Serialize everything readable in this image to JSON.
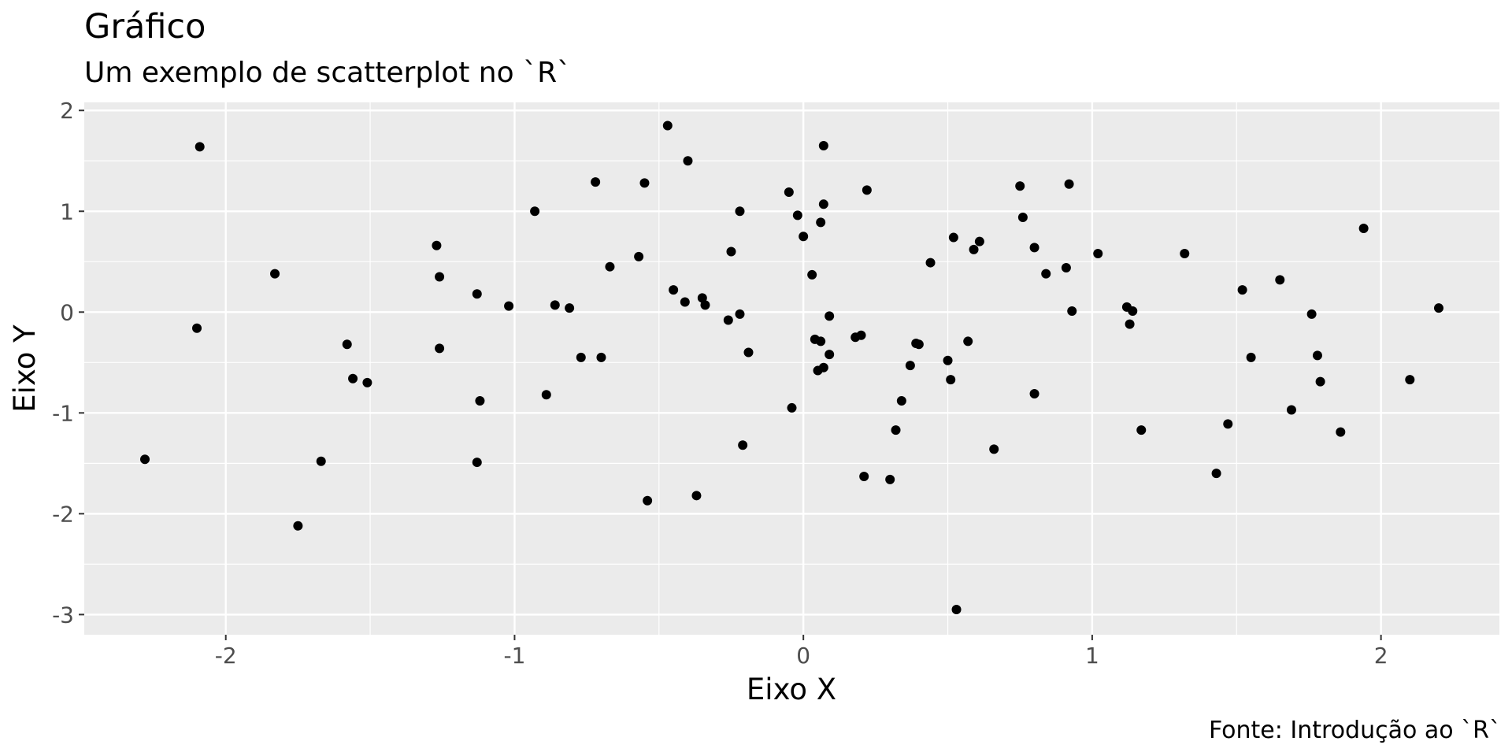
{
  "chart_data": {
    "type": "scatter",
    "title": "Gráfico",
    "subtitle": "Um exemplo de scatterplot no `R`",
    "xlabel": "Eixo X",
    "ylabel": "Eixo Y",
    "caption": "Fonte: Introdução ao `R`",
    "xlim": [
      -2.49,
      2.41
    ],
    "ylim": [
      -3.2,
      2.08
    ],
    "xticks": [
      -2,
      -1,
      0,
      1,
      2
    ],
    "yticks": [
      -3,
      -2,
      -1,
      0,
      1,
      2
    ],
    "xtick_labels": [
      "-2",
      "-1",
      "0",
      "1",
      "2"
    ],
    "ytick_labels": [
      "-3",
      "-2",
      "-1",
      "0",
      "1",
      "2"
    ],
    "grid": true,
    "legend": "none",
    "panel_background": "#ebebeb",
    "grid_color": "#ffffff",
    "point_color": "#000000",
    "points": [
      {
        "x": -2.28,
        "y": -1.46
      },
      {
        "x": -2.09,
        "y": 1.64
      },
      {
        "x": -2.1,
        "y": -0.16
      },
      {
        "x": -1.83,
        "y": 0.38
      },
      {
        "x": -1.75,
        "y": -2.12
      },
      {
        "x": -1.67,
        "y": -1.48
      },
      {
        "x": -1.58,
        "y": -0.32
      },
      {
        "x": -1.56,
        "y": -0.66
      },
      {
        "x": -1.51,
        "y": -0.7
      },
      {
        "x": -1.27,
        "y": 0.66
      },
      {
        "x": -1.26,
        "y": 0.35
      },
      {
        "x": -1.26,
        "y": -0.36
      },
      {
        "x": -1.13,
        "y": 0.18
      },
      {
        "x": -1.12,
        "y": -0.88
      },
      {
        "x": -1.13,
        "y": -1.49
      },
      {
        "x": -1.02,
        "y": 0.06
      },
      {
        "x": -0.93,
        "y": 1.0
      },
      {
        "x": -0.89,
        "y": -0.82
      },
      {
        "x": -0.86,
        "y": 0.07
      },
      {
        "x": -0.81,
        "y": 0.04
      },
      {
        "x": -0.77,
        "y": -0.45
      },
      {
        "x": -0.72,
        "y": 1.29
      },
      {
        "x": -0.7,
        "y": -0.45
      },
      {
        "x": -0.67,
        "y": 0.45
      },
      {
        "x": -0.57,
        "y": 0.55
      },
      {
        "x": -0.55,
        "y": 1.28
      },
      {
        "x": -0.54,
        "y": -1.87
      },
      {
        "x": -0.47,
        "y": 1.85
      },
      {
        "x": -0.45,
        "y": 0.22
      },
      {
        "x": -0.41,
        "y": 0.1
      },
      {
        "x": -0.4,
        "y": 1.5
      },
      {
        "x": -0.37,
        "y": -1.82
      },
      {
        "x": -0.35,
        "y": 0.14
      },
      {
        "x": -0.34,
        "y": 0.07
      },
      {
        "x": -0.26,
        "y": -0.08
      },
      {
        "x": -0.25,
        "y": 0.6
      },
      {
        "x": -0.22,
        "y": 1.0
      },
      {
        "x": -0.22,
        "y": -0.02
      },
      {
        "x": -0.21,
        "y": -1.32
      },
      {
        "x": -0.19,
        "y": -0.4
      },
      {
        "x": -0.05,
        "y": 1.19
      },
      {
        "x": -0.04,
        "y": -0.95
      },
      {
        "x": -0.02,
        "y": 0.96
      },
      {
        "x": 0.0,
        "y": 0.75
      },
      {
        "x": 0.03,
        "y": 0.37
      },
      {
        "x": 0.04,
        "y": -0.27
      },
      {
        "x": 0.05,
        "y": -0.58
      },
      {
        "x": 0.06,
        "y": 0.89
      },
      {
        "x": 0.06,
        "y": -0.29
      },
      {
        "x": 0.07,
        "y": 1.65
      },
      {
        "x": 0.07,
        "y": 1.07
      },
      {
        "x": 0.07,
        "y": -0.55
      },
      {
        "x": 0.09,
        "y": -0.04
      },
      {
        "x": 0.09,
        "y": -0.42
      },
      {
        "x": 0.18,
        "y": -0.25
      },
      {
        "x": 0.2,
        "y": -0.23
      },
      {
        "x": 0.21,
        "y": -1.63
      },
      {
        "x": 0.22,
        "y": 1.21
      },
      {
        "x": 0.3,
        "y": -1.66
      },
      {
        "x": 0.32,
        "y": -1.17
      },
      {
        "x": 0.34,
        "y": -0.88
      },
      {
        "x": 0.37,
        "y": -0.53
      },
      {
        "x": 0.39,
        "y": -0.31
      },
      {
        "x": 0.4,
        "y": -0.32
      },
      {
        "x": 0.44,
        "y": 0.49
      },
      {
        "x": 0.5,
        "y": -0.48
      },
      {
        "x": 0.51,
        "y": -0.67
      },
      {
        "x": 0.52,
        "y": 0.74
      },
      {
        "x": 0.53,
        "y": -2.95
      },
      {
        "x": 0.57,
        "y": -0.29
      },
      {
        "x": 0.59,
        "y": 0.62
      },
      {
        "x": 0.61,
        "y": 0.7
      },
      {
        "x": 0.66,
        "y": -1.36
      },
      {
        "x": 0.75,
        "y": 1.25
      },
      {
        "x": 0.76,
        "y": 0.94
      },
      {
        "x": 0.8,
        "y": 0.64
      },
      {
        "x": 0.8,
        "y": -0.81
      },
      {
        "x": 0.84,
        "y": 0.38
      },
      {
        "x": 0.91,
        "y": 0.44
      },
      {
        "x": 0.92,
        "y": 1.27
      },
      {
        "x": 0.93,
        "y": 0.01
      },
      {
        "x": 1.02,
        "y": 0.58
      },
      {
        "x": 1.12,
        "y": 0.05
      },
      {
        "x": 1.13,
        "y": -0.12
      },
      {
        "x": 1.14,
        "y": 0.01
      },
      {
        "x": 1.17,
        "y": -1.17
      },
      {
        "x": 1.32,
        "y": 0.58
      },
      {
        "x": 1.43,
        "y": -1.6
      },
      {
        "x": 1.47,
        "y": -1.11
      },
      {
        "x": 1.52,
        "y": 0.22
      },
      {
        "x": 1.55,
        "y": -0.45
      },
      {
        "x": 1.65,
        "y": 0.32
      },
      {
        "x": 1.69,
        "y": -0.97
      },
      {
        "x": 1.76,
        "y": -0.02
      },
      {
        "x": 1.78,
        "y": -0.43
      },
      {
        "x": 1.79,
        "y": -0.69
      },
      {
        "x": 1.86,
        "y": -1.19
      },
      {
        "x": 1.94,
        "y": 0.83
      },
      {
        "x": 2.1,
        "y": -0.67
      },
      {
        "x": 2.2,
        "y": 0.04
      }
    ]
  }
}
